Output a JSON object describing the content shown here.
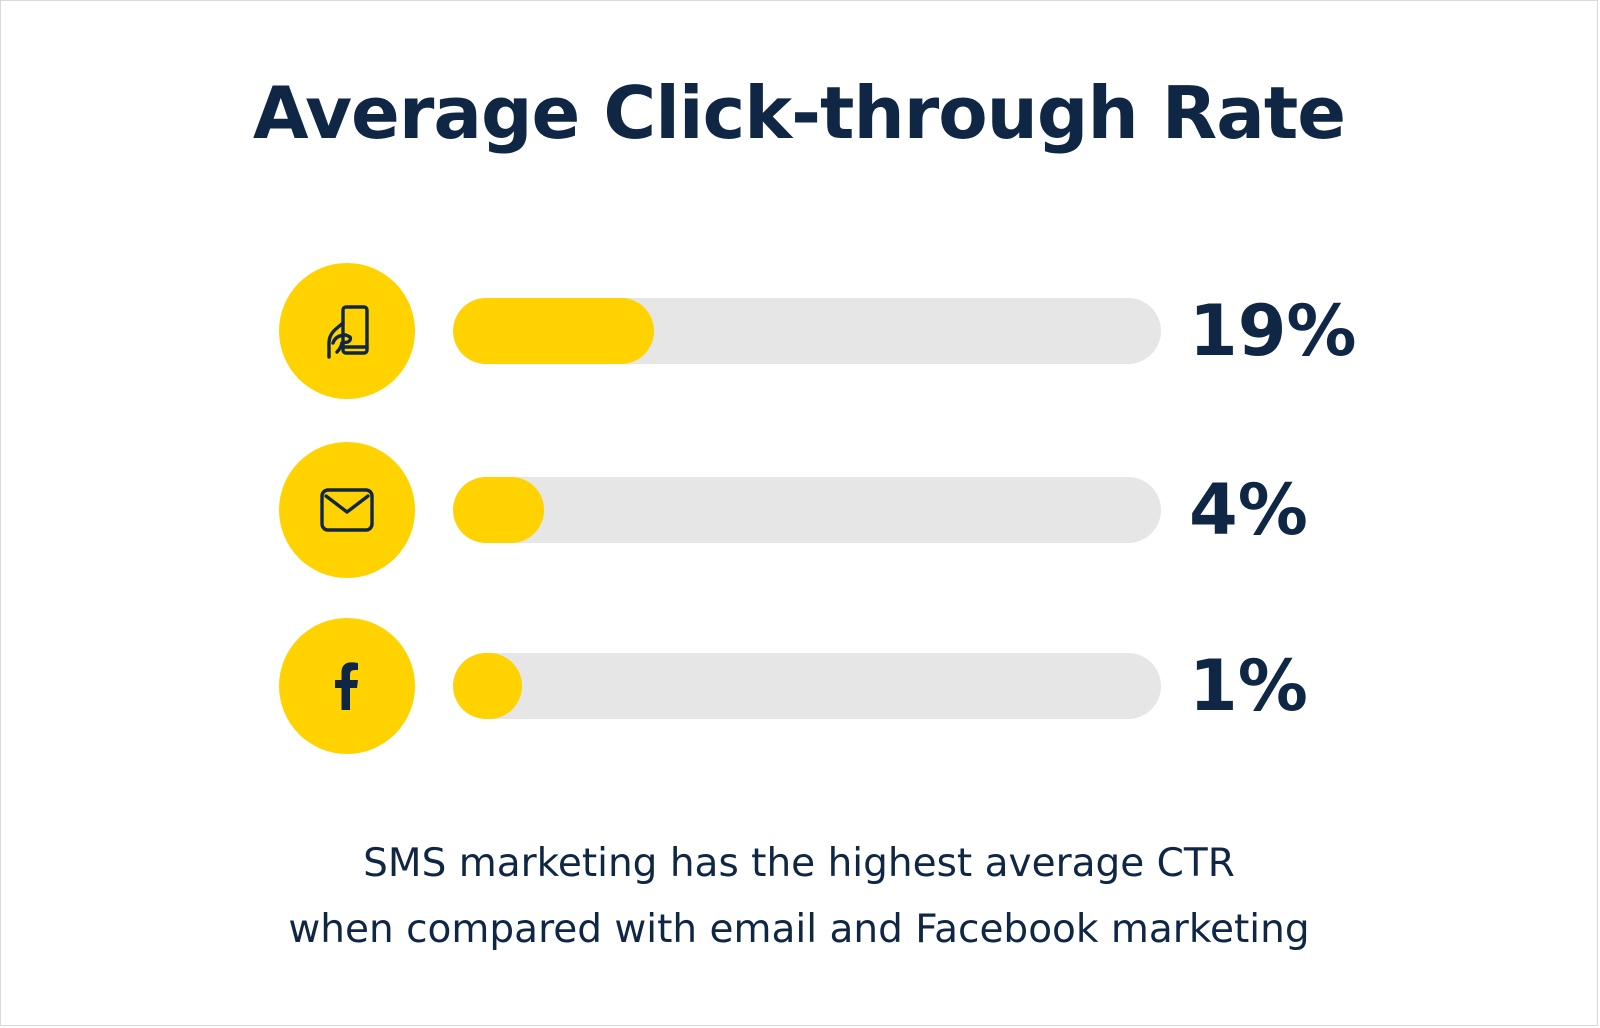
{
  "colors": {
    "accent": "#ffd200",
    "track": "#e6e6e6",
    "text": "#0f2744"
  },
  "chart_data": {
    "type": "bar",
    "title": "Average Click-through Rate",
    "categories": [
      "sms-icon",
      "email-icon",
      "facebook-icon"
    ],
    "values": [
      19,
      4,
      1
    ],
    "value_labels": [
      "19%",
      "4%",
      "1%"
    ],
    "unit": "%",
    "xlim": [
      0,
      100
    ],
    "orientation": "horizontal",
    "legend": "none",
    "grid": false
  },
  "rows": [
    {
      "icon": "phone-in-hand-icon",
      "value": 19,
      "label": "19%"
    },
    {
      "icon": "envelope-icon",
      "value": 4,
      "label": "4%"
    },
    {
      "icon": "facebook-icon",
      "value": 1,
      "label": "1%"
    }
  ],
  "caption": {
    "line1": "SMS marketing has the highest average CTR",
    "line2": "when compared with email and Facebook marketing"
  }
}
